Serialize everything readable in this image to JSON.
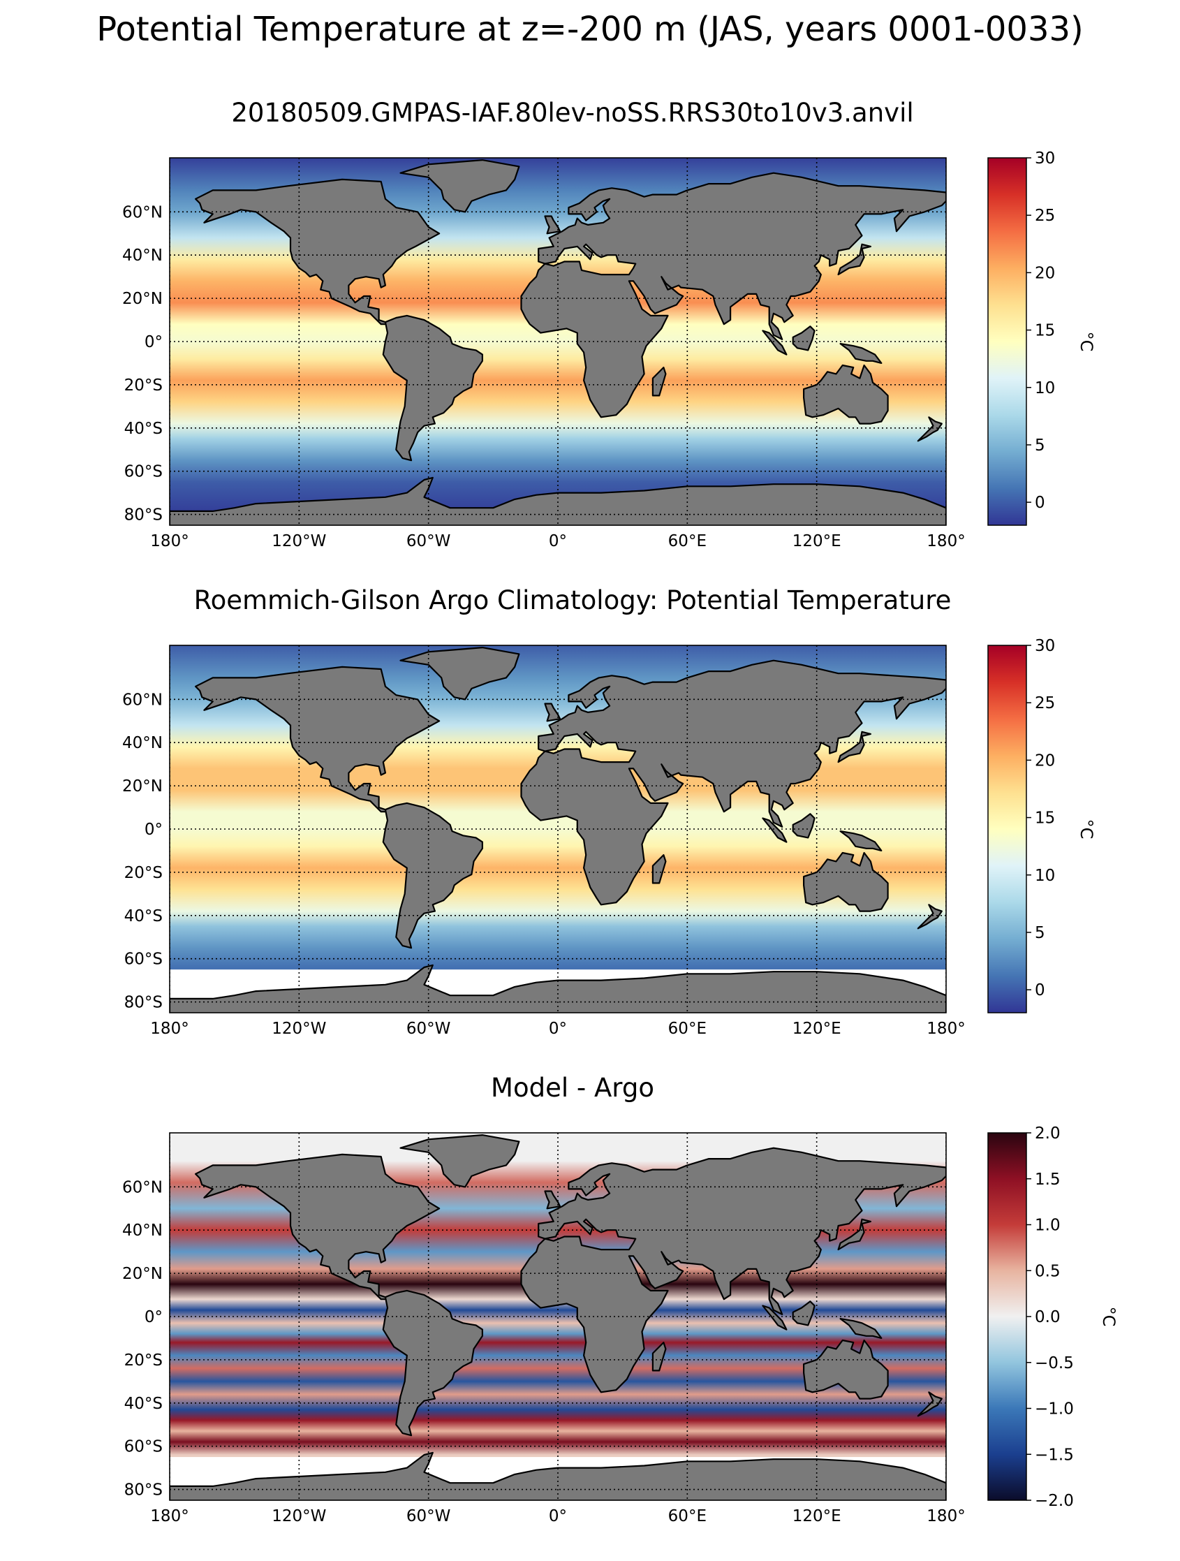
{
  "suptitle": "Potential Temperature at z=-200 m (JAS, years 0001-0033)",
  "colors": {
    "land": "#7a7a7a",
    "temperature_colormap": [
      "#313695",
      "#4575b4",
      "#74add1",
      "#abd9e9",
      "#e0f3f8",
      "#ffffbf",
      "#fee090",
      "#fdae61",
      "#f46d43",
      "#d73027",
      "#a50026"
    ],
    "difference_colormap": [
      "#0b0c2a",
      "#1b3f8f",
      "#3b78b8",
      "#92c5de",
      "#f0f0f0",
      "#e8b4a0",
      "#c43c39",
      "#8e1024",
      "#2a0510"
    ]
  },
  "chart_data": [
    {
      "type": "heatmap",
      "title": "20180509.GMPAS-IAF.80lev-noSS.RRS30to10v3.anvil",
      "xlim": [
        -180,
        180
      ],
      "ylim": [
        -85,
        85
      ],
      "x_ticks": [
        {
          "value": -180,
          "label": "180°"
        },
        {
          "value": -120,
          "label": "120°W"
        },
        {
          "value": -60,
          "label": "60°W"
        },
        {
          "value": 0,
          "label": "0°"
        },
        {
          "value": 60,
          "label": "60°E"
        },
        {
          "value": 120,
          "label": "120°E"
        },
        {
          "value": 180,
          "label": "180°"
        }
      ],
      "y_ticks": [
        {
          "value": 60,
          "label": "60°N"
        },
        {
          "value": 40,
          "label": "40°N"
        },
        {
          "value": 20,
          "label": "20°N"
        },
        {
          "value": 0,
          "label": "0°"
        },
        {
          "value": -20,
          "label": "20°S"
        },
        {
          "value": -40,
          "label": "40°S"
        },
        {
          "value": -60,
          "label": "60°S"
        },
        {
          "value": -80,
          "label": "80°S"
        }
      ],
      "grid": true,
      "colorbar": {
        "label": "°C",
        "range": [
          -2,
          30
        ],
        "ticks": [
          {
            "value": 30,
            "label": "30"
          },
          {
            "value": 25,
            "label": "25"
          },
          {
            "value": 20,
            "label": "20"
          },
          {
            "value": 15,
            "label": "15"
          },
          {
            "value": 10,
            "label": "10"
          },
          {
            "value": 5,
            "label": "5"
          },
          {
            "value": 0,
            "label": "0"
          }
        ]
      },
      "latitude_profile": [
        {
          "lat": 85,
          "value": -1.5
        },
        {
          "lat": 70,
          "value": 2
        },
        {
          "lat": 60,
          "value": 4
        },
        {
          "lat": 48,
          "value": 9
        },
        {
          "lat": 38,
          "value": 16
        },
        {
          "lat": 28,
          "value": 20
        },
        {
          "lat": 18,
          "value": 22
        },
        {
          "lat": 8,
          "value": 14
        },
        {
          "lat": 0,
          "value": 13
        },
        {
          "lat": -8,
          "value": 16
        },
        {
          "lat": -18,
          "value": 21
        },
        {
          "lat": -28,
          "value": 18
        },
        {
          "lat": -38,
          "value": 12
        },
        {
          "lat": -45,
          "value": 7
        },
        {
          "lat": -55,
          "value": 3
        },
        {
          "lat": -65,
          "value": 0
        },
        {
          "lat": -78,
          "value": -1.5
        }
      ],
      "missing_lat_south": -90
    },
    {
      "type": "heatmap",
      "title": "Roemmich-Gilson Argo Climatology: Potential Temperature",
      "xlim": [
        -180,
        180
      ],
      "ylim": [
        -85,
        85
      ],
      "x_ticks": [
        {
          "value": -180,
          "label": "180°"
        },
        {
          "value": -120,
          "label": "120°W"
        },
        {
          "value": -60,
          "label": "60°W"
        },
        {
          "value": 0,
          "label": "0°"
        },
        {
          "value": 60,
          "label": "60°E"
        },
        {
          "value": 120,
          "label": "120°E"
        },
        {
          "value": 180,
          "label": "180°"
        }
      ],
      "y_ticks": [
        {
          "value": 60,
          "label": "60°N"
        },
        {
          "value": 40,
          "label": "40°N"
        },
        {
          "value": 20,
          "label": "20°N"
        },
        {
          "value": 0,
          "label": "0°"
        },
        {
          "value": -20,
          "label": "20°S"
        },
        {
          "value": -40,
          "label": "40°S"
        },
        {
          "value": -60,
          "label": "60°S"
        },
        {
          "value": -80,
          "label": "80°S"
        }
      ],
      "grid": true,
      "colorbar": {
        "label": "°C",
        "range": [
          -2,
          30
        ],
        "ticks": [
          {
            "value": 30,
            "label": "30"
          },
          {
            "value": 25,
            "label": "25"
          },
          {
            "value": 20,
            "label": "20"
          },
          {
            "value": 15,
            "label": "15"
          },
          {
            "value": 10,
            "label": "10"
          },
          {
            "value": 5,
            "label": "5"
          },
          {
            "value": 0,
            "label": "0"
          }
        ]
      },
      "latitude_profile": [
        {
          "lat": 85,
          "value": 0
        },
        {
          "lat": 70,
          "value": 3
        },
        {
          "lat": 60,
          "value": 5
        },
        {
          "lat": 48,
          "value": 9
        },
        {
          "lat": 38,
          "value": 15
        },
        {
          "lat": 28,
          "value": 19
        },
        {
          "lat": 18,
          "value": 19
        },
        {
          "lat": 8,
          "value": 13
        },
        {
          "lat": 0,
          "value": 13
        },
        {
          "lat": -8,
          "value": 15
        },
        {
          "lat": -18,
          "value": 20
        },
        {
          "lat": -28,
          "value": 17
        },
        {
          "lat": -38,
          "value": 12
        },
        {
          "lat": -45,
          "value": 6
        },
        {
          "lat": -55,
          "value": 3
        },
        {
          "lat": -64,
          "value": 1
        }
      ],
      "missing_lat_south": -65
    },
    {
      "type": "heatmap",
      "title": "Model - Argo",
      "xlim": [
        -180,
        180
      ],
      "ylim": [
        -85,
        85
      ],
      "x_ticks": [
        {
          "value": -180,
          "label": "180°"
        },
        {
          "value": -120,
          "label": "120°W"
        },
        {
          "value": -60,
          "label": "60°W"
        },
        {
          "value": 0,
          "label": "0°"
        },
        {
          "value": 60,
          "label": "60°E"
        },
        {
          "value": 120,
          "label": "120°E"
        },
        {
          "value": 180,
          "label": "180°"
        }
      ],
      "y_ticks": [
        {
          "value": 60,
          "label": "60°N"
        },
        {
          "value": 40,
          "label": "40°N"
        },
        {
          "value": 20,
          "label": "20°N"
        },
        {
          "value": 0,
          "label": "0°"
        },
        {
          "value": -20,
          "label": "20°S"
        },
        {
          "value": -40,
          "label": "40°S"
        },
        {
          "value": -60,
          "label": "60°S"
        },
        {
          "value": -80,
          "label": "80°S"
        }
      ],
      "grid": true,
      "colorbar": {
        "label": "°C",
        "range": [
          -2,
          2
        ],
        "ticks": [
          {
            "value": 2.0,
            "label": "2.0"
          },
          {
            "value": 1.5,
            "label": "1.5"
          },
          {
            "value": 1.0,
            "label": "1.0"
          },
          {
            "value": 0.5,
            "label": "0.5"
          },
          {
            "value": 0.0,
            "label": "0.0"
          },
          {
            "value": -0.5,
            "label": "−0.5"
          },
          {
            "value": -1.0,
            "label": "−1.0"
          },
          {
            "value": -1.5,
            "label": "−1.5"
          },
          {
            "value": -2.0,
            "label": "−2.0"
          }
        ]
      },
      "latitude_profile": [
        {
          "lat": 72,
          "value": 0
        },
        {
          "lat": 62,
          "value": 0.8
        },
        {
          "lat": 50,
          "value": -0.6
        },
        {
          "lat": 40,
          "value": 1.0
        },
        {
          "lat": 30,
          "value": -0.8
        },
        {
          "lat": 22,
          "value": 0.6
        },
        {
          "lat": 15,
          "value": 2.0
        },
        {
          "lat": 8,
          "value": 0.2
        },
        {
          "lat": 3,
          "value": -1.4
        },
        {
          "lat": -3,
          "value": 0.4
        },
        {
          "lat": -8,
          "value": -0.8
        },
        {
          "lat": -12,
          "value": 1.4
        },
        {
          "lat": -18,
          "value": -0.9
        },
        {
          "lat": -24,
          "value": 0.8
        },
        {
          "lat": -30,
          "value": -1.3
        },
        {
          "lat": -36,
          "value": 0.6
        },
        {
          "lat": -43,
          "value": -1.4
        },
        {
          "lat": -48,
          "value": 1.4
        },
        {
          "lat": -53,
          "value": 0.5
        },
        {
          "lat": -58,
          "value": 1.6
        },
        {
          "lat": -64,
          "value": 0.3
        }
      ],
      "missing_lat_south": -65
    }
  ]
}
